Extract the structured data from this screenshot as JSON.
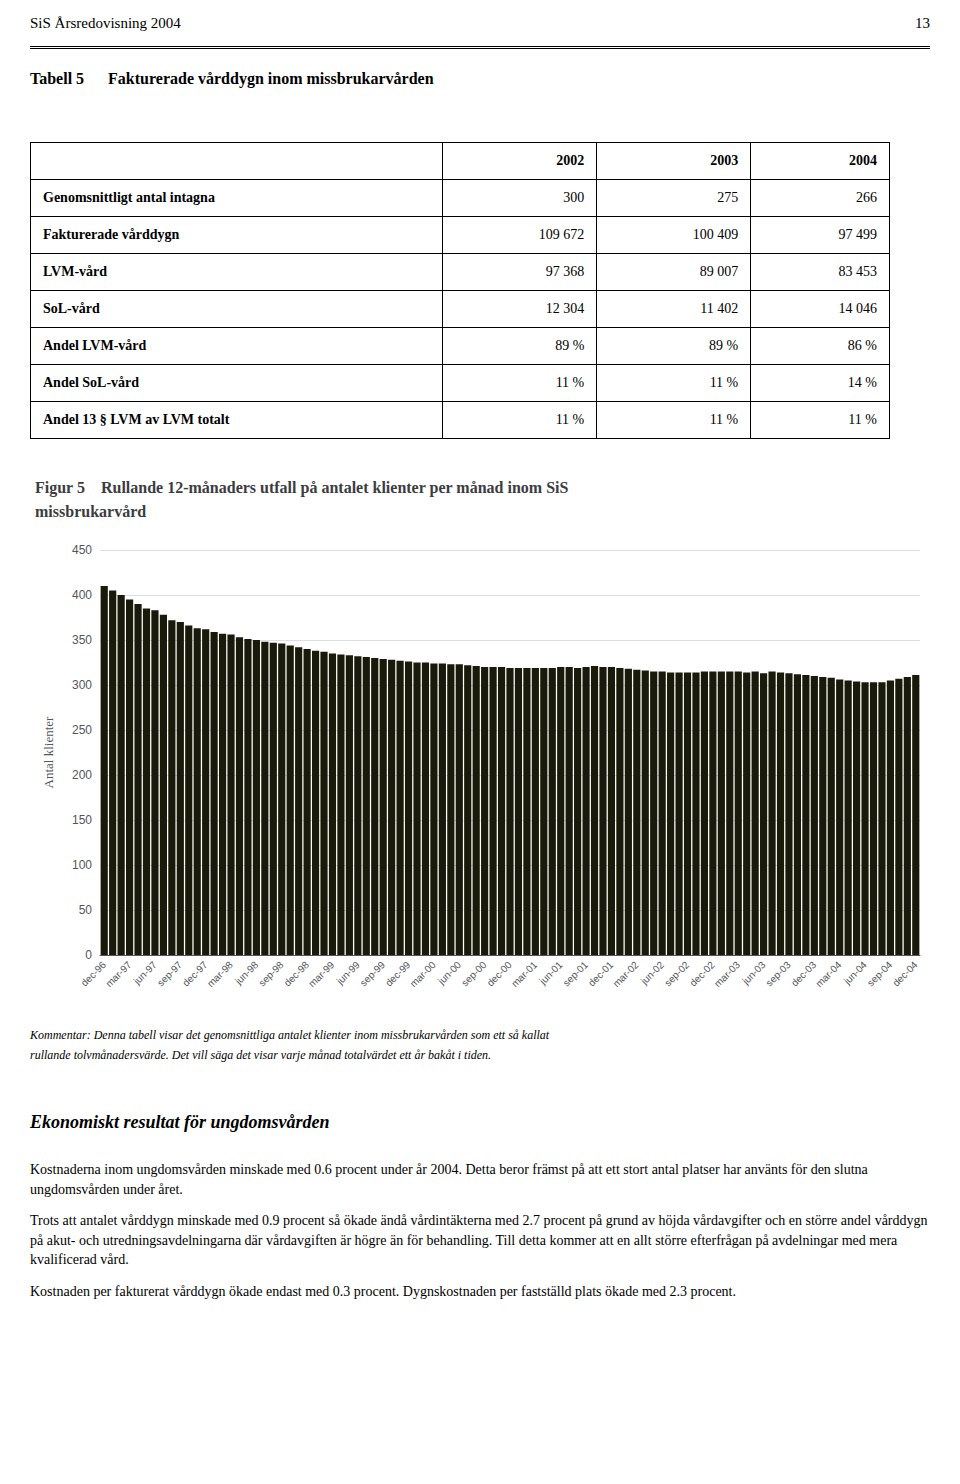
{
  "page_title": "SiS Årsredovisning 2004",
  "page_number": "13",
  "table": {
    "title": "Tabell 5      Fakturerade vårddygn inom missbrukarvården",
    "columns": [
      "2002",
      "2003",
      "2004"
    ],
    "rows": [
      [
        "Genomsnittligt antal intagna",
        "300",
        "275",
        "266"
      ],
      [
        "Fakturerade vårddygn",
        "109 672",
        "100 409",
        "97 499"
      ],
      [
        "LVM-vård",
        "97 368",
        "89 007",
        "83 453"
      ],
      [
        "SoL-vård",
        "12 304",
        "11 402",
        "14 046"
      ],
      [
        "Andel LVM-vård",
        "89 %",
        "89 %",
        "86 %"
      ],
      [
        "Andel SoL-vård",
        "11 %",
        "11 %",
        "14 %"
      ],
      [
        "Andel 13 § LVM av LVM totalt",
        "11 %",
        "11 %",
        "11 %"
      ]
    ]
  },
  "chart_data": {
    "type": "bar",
    "title": "Figur 5    Rullande 12-månaders utfall på antalet klienter per månad inom SiS\nmissbrukarvård",
    "ylabel": "Antal klienter",
    "categories": [
      "dec-96",
      null,
      null,
      "mar-97",
      null,
      null,
      "jun-97",
      null,
      null,
      "sep-97",
      null,
      null,
      "dec-97",
      null,
      null,
      "mar-98",
      null,
      null,
      "jun-98",
      null,
      null,
      "sep-98",
      null,
      null,
      "dec-98",
      null,
      null,
      "mar-99",
      null,
      null,
      "jun-99",
      null,
      null,
      "sep-99",
      null,
      null,
      "dec-99",
      null,
      null,
      "mar-00",
      null,
      null,
      "jun-00",
      null,
      null,
      "sep-00",
      null,
      null,
      "dec-00",
      null,
      null,
      "mar-01",
      null,
      null,
      "jun-01",
      null,
      null,
      "sep-01",
      null,
      null,
      "dec-01",
      null,
      null,
      "mar-02",
      null,
      null,
      "jun-02",
      null,
      null,
      "sep-02",
      null,
      null,
      "dec-02",
      null,
      null,
      "mar-03",
      null,
      null,
      "jun-03",
      null,
      null,
      "sep-03",
      null,
      null,
      "dec-03",
      null,
      null,
      "mar-04",
      null,
      null,
      "jun-04",
      null,
      null,
      "sep-04",
      null,
      null,
      "dec-04"
    ],
    "values": [
      410,
      405,
      400,
      395,
      390,
      385,
      383,
      378,
      372,
      370,
      366,
      363,
      362,
      359,
      357,
      356,
      353,
      351,
      350,
      348,
      347,
      346,
      344,
      342,
      340,
      338,
      337,
      335,
      334,
      333,
      332,
      331,
      330,
      329,
      328,
      327,
      326,
      325,
      325,
      324,
      324,
      323,
      323,
      322,
      321,
      320,
      320,
      320,
      319,
      319,
      319,
      319,
      319,
      319,
      320,
      320,
      319,
      320,
      321,
      320,
      320,
      319,
      318,
      317,
      316,
      315,
      315,
      314,
      314,
      314,
      314,
      315,
      315,
      315,
      315,
      315,
      314,
      315,
      313,
      315,
      314,
      313,
      312,
      311,
      310,
      309,
      308,
      306,
      305,
      304,
      303,
      303,
      303,
      305,
      307,
      309,
      311
    ],
    "color": "#1a1a0a",
    "ylim": [
      0,
      450
    ],
    "yticks": [
      0,
      50,
      100,
      150,
      200,
      250,
      300,
      350,
      400,
      450
    ],
    "grid": true
  },
  "comment": [
    "Kommentar: Denna tabell visar det genomsnittliga antalet klienter inom missbrukarvården som ett så kallat",
    "rullande tolvmånadersvärde. Det vill säga det visar varje månad totalvärdet ett år bakåt i tiden."
  ],
  "section_title": "Ekonomiskt resultat för ungdomsvården",
  "body_paragraphs": [
    "Kostnaderna inom ungdomsvården minskade med 0.6 procent under år 2004. Detta beror främst på att ett stort antal platser har använts för den slutna ungdomsvården under året.",
    "Trots att antalet vårddygn minskade med 0.9 procent så ökade ändå vårdintäkterna med 2.7 procent på grund av höjda vårdavgifter och en större andel vårddygn på akut- och utredningsavdelningarna där vårdavgiften är högre än för behandling. Till detta kommer att en allt större efterfrågan på avdelningar med mera kvalificerad vård.",
    "Kostnaden per fakturerat vårddygn ökade endast med 0.3 procent. Dygnskostnaden per fastställd plats ökade med 2.3 procent."
  ]
}
